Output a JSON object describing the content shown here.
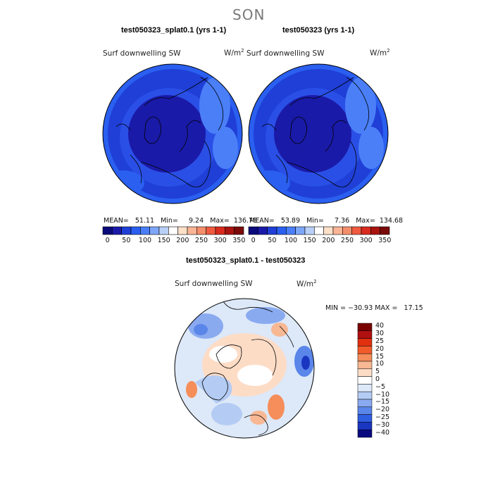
{
  "season": "SON",
  "panels": [
    {
      "title": "test050323_splat0.1 (yrs 1-1)",
      "field": "Surf downwelling SW",
      "units": "W/m",
      "units_sup": "2",
      "stats": "MEAN=   51.11   Min=     9.24   Max=  136.78"
    },
    {
      "title": "test050323 (yrs 1-1)",
      "field": "Surf downwelling SW",
      "units": "W/m",
      "units_sup": "2",
      "stats": "MEAN=   53.89   Min=     7.36   Max=  134.68"
    }
  ],
  "colorbar_top": {
    "colors": [
      "#0a0a7a",
      "#1a1aa8",
      "#1f3fd6",
      "#2a5ff0",
      "#4a7ff8",
      "#7ea6f8",
      "#b8d0f8",
      "#ffffff",
      "#fde0c8",
      "#f9b596",
      "#f58e6c",
      "#ef5a40",
      "#d92b1f",
      "#a81410",
      "#7a0a0a"
    ],
    "labels": [
      "0",
      "50",
      "100",
      "150",
      "200",
      "250",
      "300",
      "350"
    ]
  },
  "diff": {
    "title": "test050323_splat0.1 - test050323",
    "field": "Surf downwelling SW",
    "units": "W/m",
    "units_sup": "2",
    "minmax": "MIN = −30.93 MAX =   17.15"
  },
  "colorbar_diff": {
    "colors": [
      "#7a0000",
      "#b01010",
      "#e03010",
      "#f25a2a",
      "#f58e5a",
      "#f8b894",
      "#fddcc6",
      "#ffffff",
      "#dde8f8",
      "#b4ccf4",
      "#8aaaf0",
      "#5a86ea",
      "#2f5ee0",
      "#1a36c0",
      "#0a0a80"
    ],
    "labels": [
      "40",
      "30",
      "25",
      "20",
      "15",
      "10",
      "5",
      "0",
      "−5",
      "−10",
      "−15",
      "−20",
      "−25",
      "−30",
      "−40"
    ]
  }
}
